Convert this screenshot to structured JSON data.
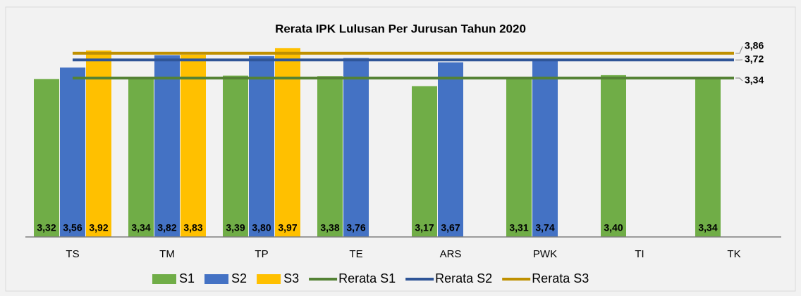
{
  "chart_data": {
    "type": "bar",
    "title": "Rerata IPK Lulusan Per Jurusan Tahun 2020",
    "categories": [
      "TS",
      "TM",
      "TP",
      "TE",
      "ARS",
      "PWK",
      "TI",
      "TK"
    ],
    "ylim": [
      0,
      4.3
    ],
    "series": [
      {
        "name": "S1",
        "color": "#70ad47",
        "values": [
          3.32,
          3.34,
          3.39,
          3.38,
          3.17,
          3.31,
          3.4,
          3.34
        ],
        "value_labels": [
          "3,32",
          "3,34",
          "3,39",
          "3,38",
          "3,17",
          "3,31",
          "3,40",
          "3,34"
        ]
      },
      {
        "name": "S2",
        "color": "#4472c4",
        "values": [
          3.56,
          3.82,
          3.8,
          3.76,
          3.67,
          3.74,
          null,
          null
        ],
        "value_labels": [
          "3,56",
          "3,82",
          "3,80",
          "3,76",
          "3,67",
          "3,74",
          null,
          null
        ]
      },
      {
        "name": "S3",
        "color": "#ffc000",
        "values": [
          3.92,
          3.83,
          3.97,
          null,
          null,
          null,
          null,
          null
        ],
        "value_labels": [
          "3,92",
          "3,83",
          "3,97",
          null,
          null,
          null,
          null,
          null
        ]
      }
    ],
    "reference_lines": [
      {
        "name": "Rerata S1",
        "color": "#548235",
        "value": 3.34,
        "value_label": "3,34"
      },
      {
        "name": "Rerata S2",
        "color": "#2f5597",
        "value": 3.72,
        "value_label": "3,72"
      },
      {
        "name": "Rerata S3",
        "color": "#bf9000",
        "value": 3.86,
        "value_label": "3,86"
      }
    ],
    "legend": "bottom"
  }
}
